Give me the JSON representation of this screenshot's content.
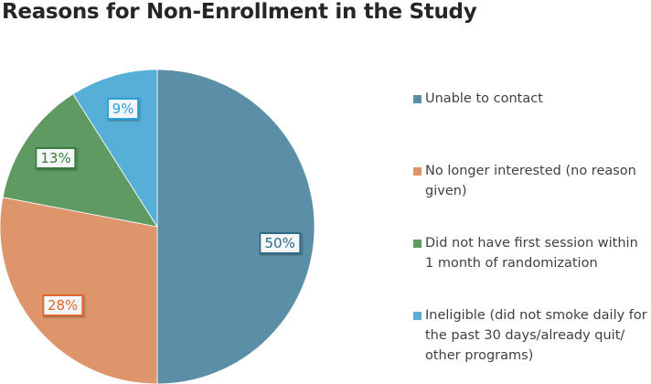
{
  "chart_data": {
    "type": "pie",
    "title": "Reasons for Non-Enrollment in the Study",
    "legend_position": "right",
    "slices": [
      {
        "label": "Unable to contact",
        "value": 50,
        "data_label": "50%",
        "color": "#5b8fa8",
        "label_border": "#2f6a8a"
      },
      {
        "label": "No longer interested (no reason given)",
        "value": 28,
        "data_label": "28%",
        "color": "#de956b",
        "label_border": "#e0682a"
      },
      {
        "label": "Did not have first session within 1 month of randomization",
        "value": 13,
        "data_label": "13%",
        "color": "#5f9a63",
        "label_border": "#3a7d3e"
      },
      {
        "label": "Ineligible (did not smoke daily for the past 30 days/already quit/ other programs)",
        "value": 9,
        "data_label": "9%",
        "color": "#56afd6",
        "label_border": "#2a9fd8"
      }
    ]
  }
}
